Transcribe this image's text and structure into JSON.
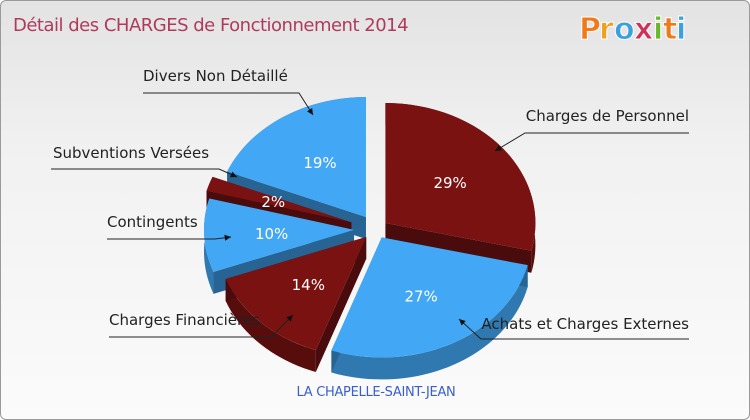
{
  "header": {
    "title": "Détail des CHARGES de Fonctionnement 2014",
    "logo_text": "Proxiti"
  },
  "footer": {
    "commune": "LA CHAPELLE-SAINT-JEAN"
  },
  "colors": {
    "dark_red": "#7a1212",
    "blue": "#42a7f5",
    "title": "#b03a5d",
    "subtitle": "#3a5fcd"
  },
  "chart_data": {
    "type": "pie",
    "title": "Détail des CHARGES de Fonctionnement 2014",
    "slices": [
      {
        "label": "Charges de Personnel",
        "value": 29,
        "display": "29%",
        "color": "#7a1212"
      },
      {
        "label": "Achats et Charges Externes",
        "value": 27,
        "display": "27%",
        "color": "#42a7f5"
      },
      {
        "label": "Charges Financières",
        "value": 14,
        "display": "14%",
        "color": "#7a1212"
      },
      {
        "label": "Contingents",
        "value": 10,
        "display": "10%",
        "color": "#42a7f5"
      },
      {
        "label": "Subventions Versées",
        "value": 2,
        "display": "2%",
        "color": "#7a1212"
      },
      {
        "label": "Divers Non Détaillé",
        "value": 19,
        "display": "19%",
        "color": "#42a7f5"
      }
    ],
    "exploded": true,
    "three_d": true,
    "legend": "callouts"
  }
}
